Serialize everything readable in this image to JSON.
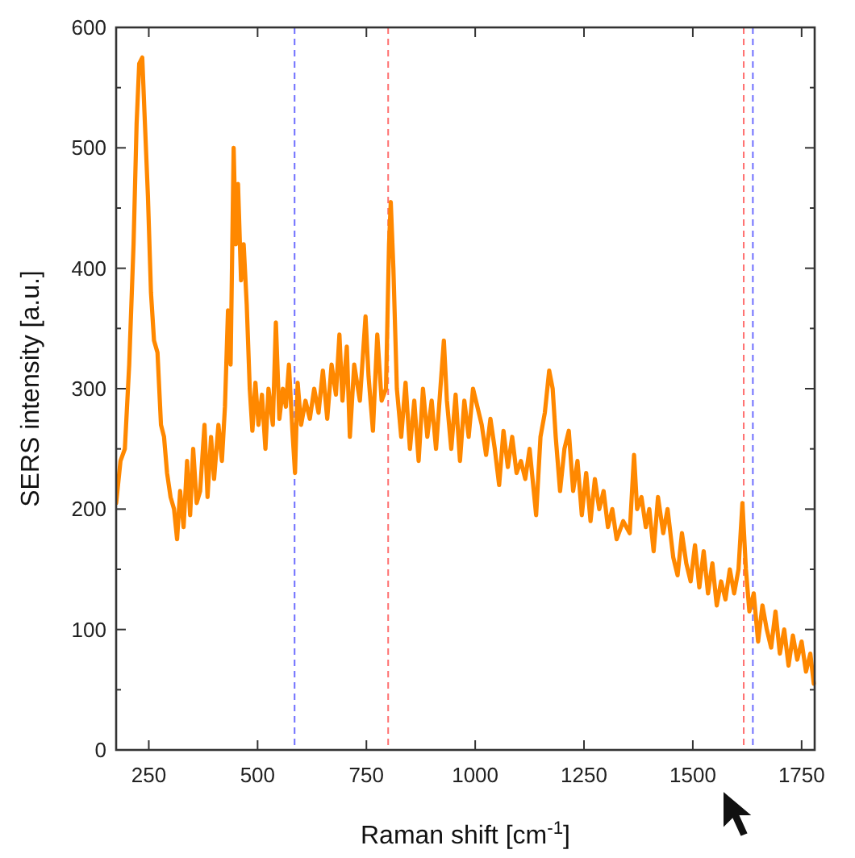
{
  "chart_data": {
    "type": "line",
    "xlabel": "Raman shift [cm$^{-1}$]",
    "ylabel": "SERS intensity [a.u.]",
    "xlim": [
      175,
      1780
    ],
    "xticks": [
      250,
      500,
      750,
      1000,
      1250,
      1500,
      1750
    ],
    "ylim": [
      0,
      600
    ],
    "yticks": [
      0,
      {
        "value": 50,
        "label": null
      },
      100,
      {
        "value": 150,
        "label": null
      },
      200,
      {
        "value": 250,
        "label": null
      },
      300,
      {
        "value": 350,
        "label": null
      },
      400,
      {
        "value": 450,
        "label": null
      },
      500,
      {
        "value": 550,
        "label": null
      },
      600
    ],
    "grid": false,
    "marker": "none",
    "line_style": "solid",
    "ref_lines": [
      {
        "axis": "x",
        "value": 585,
        "color": "#6f6fff",
        "line_style": "dashed"
      },
      {
        "axis": "x",
        "value": 800,
        "color": "#ff6f6f",
        "line_style": "dashed"
      },
      {
        "axis": "x",
        "value": 1617,
        "color": "#ff6f6f",
        "line_style": "dashed"
      },
      {
        "axis": "x",
        "value": 1638,
        "color": "#6f6fff",
        "line_style": "dashed"
      }
    ],
    "series": [
      {
        "color": "#ff8800",
        "x": [
          175,
          185,
          195,
          205,
          215,
          222,
          228,
          235,
          240,
          248,
          255,
          262,
          270,
          278,
          285,
          292,
          300,
          308,
          315,
          322,
          330,
          338,
          345,
          352,
          360,
          368,
          378,
          385,
          393,
          400,
          410,
          418,
          425,
          432,
          438,
          445,
          450,
          455,
          462,
          468,
          475,
          482,
          488,
          495,
          502,
          510,
          518,
          525,
          535,
          542,
          550,
          558,
          565,
          572,
          580,
          586,
          592,
          600,
          610,
          620,
          630,
          640,
          650,
          660,
          670,
          680,
          688,
          695,
          705,
          712,
          722,
          735,
          748,
          755,
          765,
          775,
          785,
          795,
          802,
          806,
          812,
          820,
          830,
          840,
          850,
          860,
          870,
          880,
          890,
          900,
          910,
          920,
          928,
          935,
          945,
          955,
          965,
          975,
          985,
          995,
          1005,
          1015,
          1025,
          1035,
          1045,
          1055,
          1065,
          1075,
          1085,
          1095,
          1105,
          1115,
          1125,
          1140,
          1150,
          1160,
          1170,
          1178,
          1185,
          1195,
          1205,
          1215,
          1225,
          1235,
          1245,
          1255,
          1265,
          1275,
          1285,
          1295,
          1305,
          1315,
          1325,
          1340,
          1355,
          1365,
          1372,
          1382,
          1392,
          1400,
          1410,
          1420,
          1432,
          1442,
          1455,
          1465,
          1475,
          1485,
          1495,
          1505,
          1515,
          1525,
          1535,
          1545,
          1555,
          1565,
          1575,
          1585,
          1595,
          1605,
          1614,
          1622,
          1630,
          1640,
          1650,
          1660,
          1670,
          1680,
          1690,
          1700,
          1710,
          1720,
          1730,
          1740,
          1750,
          1760,
          1770,
          1778
        ],
        "values": [
          205,
          240,
          250,
          320,
          420,
          520,
          570,
          575,
          530,
          460,
          380,
          340,
          330,
          270,
          260,
          230,
          210,
          200,
          175,
          215,
          185,
          240,
          195,
          250,
          205,
          215,
          270,
          210,
          260,
          225,
          270,
          240,
          285,
          365,
          320,
          500,
          420,
          470,
          390,
          420,
          370,
          300,
          265,
          305,
          270,
          295,
          250,
          300,
          270,
          355,
          275,
          300,
          285,
          320,
          265,
          230,
          305,
          270,
          290,
          275,
          300,
          280,
          315,
          275,
          320,
          295,
          345,
          290,
          335,
          260,
          320,
          290,
          360,
          310,
          265,
          345,
          290,
          300,
          420,
          455,
          400,
          300,
          260,
          305,
          250,
          290,
          240,
          300,
          260,
          290,
          250,
          300,
          340,
          290,
          250,
          295,
          240,
          290,
          260,
          300,
          285,
          270,
          245,
          275,
          250,
          220,
          265,
          235,
          260,
          230,
          240,
          225,
          250,
          195,
          260,
          280,
          315,
          300,
          260,
          215,
          250,
          265,
          215,
          240,
          195,
          230,
          190,
          225,
          200,
          215,
          185,
          200,
          175,
          190,
          180,
          245,
          200,
          210,
          185,
          200,
          165,
          210,
          180,
          200,
          160,
          145,
          180,
          155,
          140,
          170,
          135,
          165,
          130,
          155,
          120,
          140,
          125,
          150,
          130,
          150,
          205,
          150,
          115,
          130,
          90,
          120,
          100,
          85,
          115,
          80,
          100,
          70,
          95,
          75,
          90,
          65,
          80,
          55
        ]
      }
    ]
  }
}
